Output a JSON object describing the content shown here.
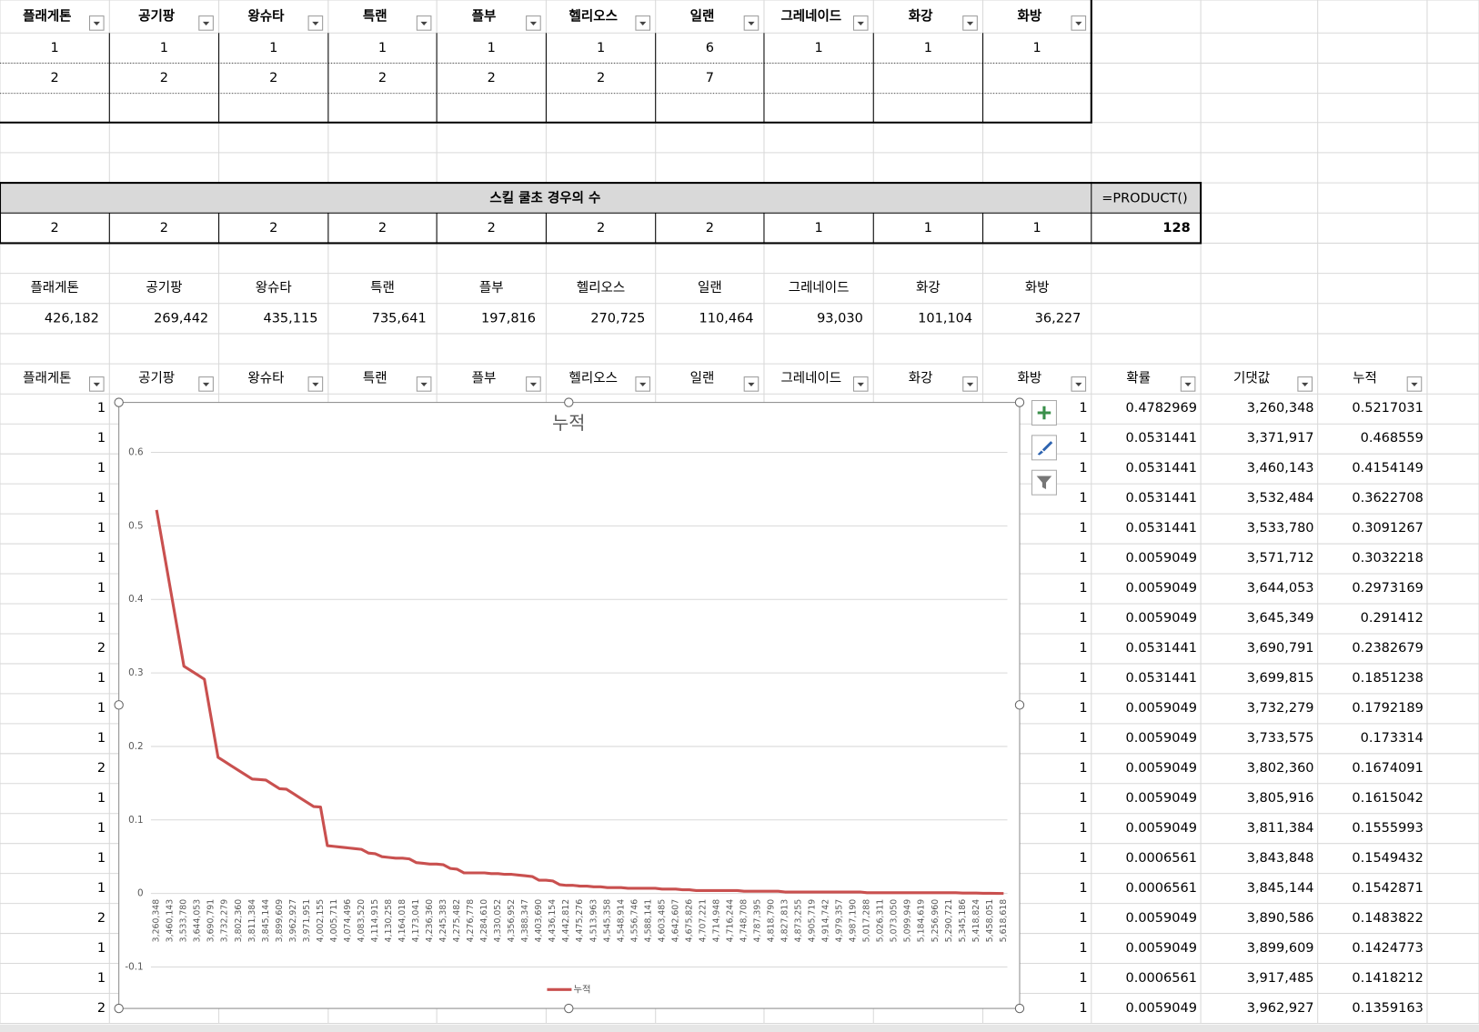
{
  "filter_table": {
    "headers": [
      "플래게톤",
      "공기팡",
      "왕슈타",
      "특랜",
      "플부",
      "헬리오스",
      "일랜",
      "그레네이드",
      "화강",
      "화방"
    ],
    "rows": [
      [
        1,
        1,
        1,
        1,
        1,
        1,
        6,
        1,
        1,
        1
      ],
      [
        2,
        2,
        2,
        2,
        2,
        2,
        7,
        null,
        null,
        null
      ]
    ]
  },
  "skill_table": {
    "title": "스킬 쿨초 경우의 수",
    "formula": "=PRODUCT()",
    "values": [
      2,
      2,
      2,
      2,
      2,
      2,
      2,
      1,
      1,
      1
    ],
    "result": 128
  },
  "damage_table": {
    "headers": [
      "플래게톤",
      "공기팡",
      "왕슈타",
      "특랜",
      "플부",
      "헬리오스",
      "일랜",
      "그레네이드",
      "화강",
      "화방"
    ],
    "values": [
      "426,182",
      "269,442",
      "435,115",
      "735,641",
      "197,816",
      "270,725",
      "110,464",
      "93,030",
      "101,104",
      "36,227"
    ]
  },
  "result_table": {
    "headers": [
      "플래게톤",
      "공기팡",
      "왕슈타",
      "특랜",
      "플부",
      "헬리오스",
      "일랜",
      "그레네이드",
      "화강",
      "화방",
      "확률",
      "기댓값",
      "누적"
    ],
    "rows": [
      [
        1,
        1,
        0.4782969,
        "3,260,348",
        0.5217031
      ],
      [
        1,
        1,
        0.0531441,
        "3,371,917",
        0.468559
      ],
      [
        1,
        1,
        0.0531441,
        "3,460,143",
        0.4154149
      ],
      [
        1,
        1,
        0.0531441,
        "3,532,484",
        0.3622708
      ],
      [
        1,
        1,
        0.0531441,
        "3,533,780",
        0.3091267
      ],
      [
        1,
        1,
        0.0059049,
        "3,571,712",
        0.3032218
      ],
      [
        1,
        1,
        0.0059049,
        "3,644,053",
        0.2973169
      ],
      [
        1,
        1,
        0.0059049,
        "3,645,349",
        0.291412
      ],
      [
        2,
        1,
        0.0531441,
        "3,690,791",
        0.2382679
      ],
      [
        1,
        1,
        0.0531441,
        "3,699,815",
        0.1851238
      ],
      [
        1,
        1,
        0.0059049,
        "3,732,279",
        0.1792189
      ],
      [
        1,
        1,
        0.0059049,
        "3,733,575",
        0.173314
      ],
      [
        2,
        1,
        0.0059049,
        "3,802,360",
        0.1674091
      ],
      [
        1,
        1,
        0.0059049,
        "3,805,916",
        0.1615042
      ],
      [
        1,
        1,
        0.0059049,
        "3,811,384",
        0.1555993
      ],
      [
        1,
        1,
        0.0006561,
        "3,843,848",
        0.1549432
      ],
      [
        1,
        1,
        0.0006561,
        "3,845,144",
        0.1542871
      ],
      [
        2,
        1,
        0.0059049,
        "3,890,586",
        0.1483822
      ],
      [
        1,
        1,
        0.0059049,
        "3,899,609",
        0.1424773
      ],
      [
        1,
        1,
        0.0006561,
        "3,917,485",
        0.1418212
      ],
      [
        2,
        1,
        0.0059049,
        "3,962,927",
        0.1359163
      ]
    ]
  },
  "chart_data": {
    "type": "line",
    "title": "누적",
    "categories": [
      "3,260,348",
      null,
      "3,460,143",
      null,
      "3,533,780",
      null,
      "3,644,053",
      null,
      "3,690,791",
      null,
      "3,732,279",
      null,
      "3,802,360",
      null,
      "3,811,384",
      null,
      "3,845,144",
      null,
      "3,899,609",
      null,
      "3,962,927",
      null,
      "3,971,951",
      null,
      "4,002,155",
      null,
      "4,005,711",
      null,
      "4,074,496",
      null,
      "4,083,520",
      null,
      "4,114,915",
      null,
      "4,130,258",
      null,
      "4,164,018",
      null,
      "4,173,041",
      null,
      "4,236,360",
      null,
      "4,245,383",
      null,
      "4,275,482",
      null,
      "4,276,778",
      null,
      "4,284,610",
      null,
      "4,330,052",
      null,
      "4,356,952",
      null,
      "4,388,347",
      null,
      "4,403,690",
      null,
      "4,436,154",
      null,
      "4,442,812",
      null,
      "4,475,276",
      null,
      "4,513,963",
      null,
      "4,545,358",
      null,
      "4,548,914",
      null,
      "4,556,746",
      null,
      "4,588,141",
      null,
      "4,603,485",
      null,
      "4,642,607",
      null,
      "4,675,826",
      null,
      "4,707,221",
      null,
      "4,714,948",
      null,
      "4,716,244",
      null,
      "4,748,708",
      null,
      "4,787,395",
      null,
      "4,818,790",
      null,
      "4,827,813",
      null,
      "4,873,255",
      null,
      "4,905,719",
      null,
      "4,914,742",
      null,
      "4,979,357",
      null,
      "4,987,190",
      null,
      "5,017,288",
      null,
      "5,026,311",
      null,
      "5,073,050",
      null,
      "5,099,949",
      null,
      "5,184,619",
      null,
      "5,256,960",
      null,
      "5,290,721",
      null,
      "5,345,186",
      null,
      "5,418,824",
      null,
      "5,458,051",
      null,
      "5,618,618"
    ],
    "series": [
      {
        "name": "누적",
        "color": "#c9504f",
        "values": [
          0.5217031,
          0.468559,
          0.4154149,
          0.3622708,
          0.3091267,
          0.3032218,
          0.2973169,
          0.291412,
          0.2382679,
          0.1851238,
          0.1792189,
          0.173314,
          0.1674091,
          0.1615042,
          0.1555993,
          0.1549432,
          0.1542871,
          0.1483822,
          0.1424773,
          0.1418212,
          0.1359163,
          0.13,
          0.1241,
          0.1182,
          0.1176,
          0.065,
          0.064,
          0.063,
          0.062,
          0.061,
          0.06,
          0.055,
          0.054,
          0.05,
          0.049,
          0.048,
          0.048,
          0.047,
          0.042,
          0.041,
          0.04,
          0.04,
          0.039,
          0.034,
          0.033,
          0.028,
          0.028,
          0.028,
          0.028,
          0.027,
          0.027,
          0.026,
          0.026,
          0.025,
          0.024,
          0.023,
          0.018,
          0.018,
          0.017,
          0.012,
          0.011,
          0.011,
          0.01,
          0.01,
          0.009,
          0.009,
          0.008,
          0.008,
          0.008,
          0.007,
          0.007,
          0.007,
          0.007,
          0.007,
          0.006,
          0.006,
          0.006,
          0.005,
          0.005,
          0.004,
          0.004,
          0.004,
          0.004,
          0.004,
          0.004,
          0.004,
          0.003,
          0.003,
          0.003,
          0.003,
          0.003,
          0.003,
          0.002,
          0.002,
          0.002,
          0.002,
          0.002,
          0.002,
          0.002,
          0.002,
          0.002,
          0.002,
          0.002,
          0.002,
          0.001,
          0.001,
          0.001,
          0.001,
          0.001,
          0.001,
          0.001,
          0.001,
          0.001,
          0.001,
          0.001,
          0.001,
          0.001,
          0.001,
          0.0005,
          0.0005,
          0.0005,
          0.0003,
          0.0002,
          0.0001,
          0
        ]
      }
    ],
    "ylim": [
      -0.1,
      0.6
    ],
    "yticks": [
      -0.1,
      0,
      0.1,
      0.2,
      0.3,
      0.4,
      0.5,
      0.6
    ],
    "grid": true,
    "legend": "bottom"
  }
}
